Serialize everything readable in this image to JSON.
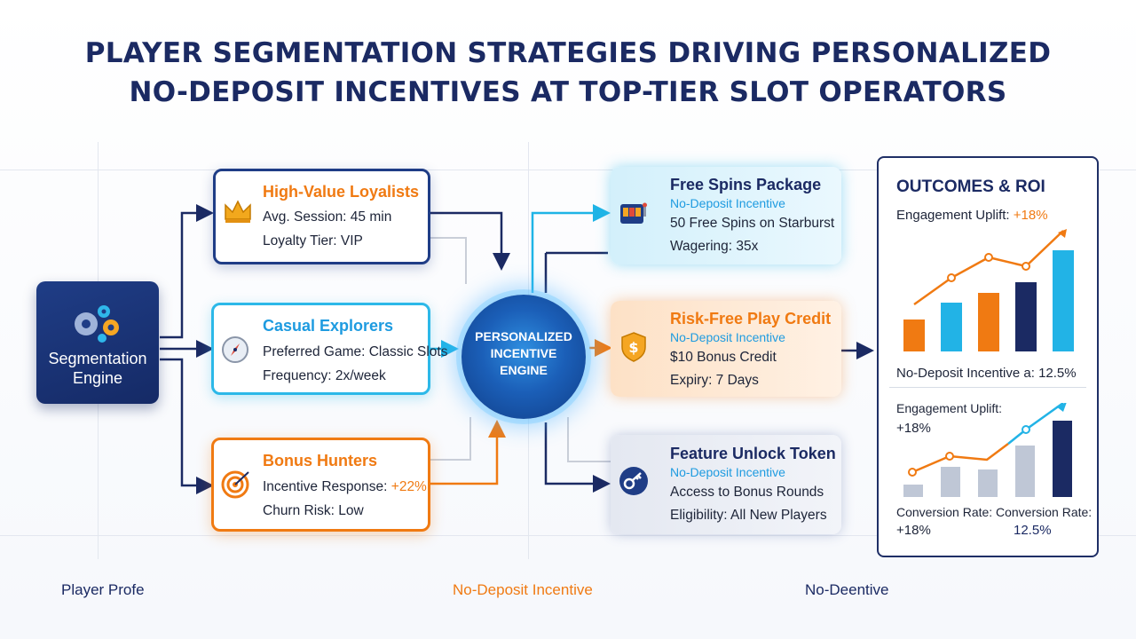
{
  "title": {
    "line1": "PLAYER SEGMENTATION STRATEGIES DRIVING PERSONALIZED",
    "line2": "NO-DEPOSIT INCENTIVES AT TOP-TIER SLOT OPERATORS"
  },
  "segmentation_engine": {
    "label_line1": "Segmentation",
    "label_line2": "Engine"
  },
  "segments": [
    {
      "title": "High-Value Loyalists",
      "line1": "Avg. Session: 45 min",
      "line2": "Loyalty Tier: VIP",
      "icon": "crown-icon"
    },
    {
      "title": "Casual Explorers",
      "line1": "Preferred Game: Classic Slots",
      "line2": "Frequency: 2x/week",
      "icon": "compass-icon"
    },
    {
      "title": "Bonus Hunters",
      "line1_prefix": "Incentive Response: ",
      "line1_value": "+22%",
      "line2": "Churn Risk: Low",
      "icon": "target-icon"
    }
  ],
  "hub": {
    "line1": "PERSONALIZED",
    "line2": "INCENTIVE",
    "line3": "ENGINE"
  },
  "incentives": [
    {
      "title": "Free Spins Package",
      "subtitle": "No-Deposit Incentive",
      "line1": "50 Free Spins on Starburst",
      "line2": "Wagering: 35x",
      "icon": "slot-machine-icon"
    },
    {
      "title": "Risk-Free Play Credit",
      "subtitle": "No-Deposit Incentive",
      "line1": "$10 Bonus Credit",
      "line2": "Expiry: 7 Days",
      "icon": "shield-dollar-icon"
    },
    {
      "title": "Feature Unlock Token",
      "subtitle": "No-Deposit Incentive",
      "line1": "Access to Bonus Rounds",
      "line2": "Eligibility: All New Players",
      "icon": "key-icon"
    }
  ],
  "outcomes": {
    "title": "OUTCOMES & ROI",
    "engagement_label": "Engagement Uplift: ",
    "engagement_value": "+18%",
    "no_deposit_label": "No-Deposit Incentive a: 12.5%",
    "engagement2_label": "Engagement Uplift:",
    "engagement2_value": "+18%",
    "conv1_label": "Conversion Rate:",
    "conv1_value": "+18%",
    "conv2_label": "Conversion Rate:",
    "conv2_value": "12.5%"
  },
  "footer": {
    "left": "Player Profe",
    "center": "No-Deposit Incentive",
    "right": "No-Deentive"
  },
  "colors": {
    "navy": "#1b2a63",
    "orange": "#f07a12",
    "cyan": "#1fb4e6",
    "blue": "#1e9be0"
  }
}
